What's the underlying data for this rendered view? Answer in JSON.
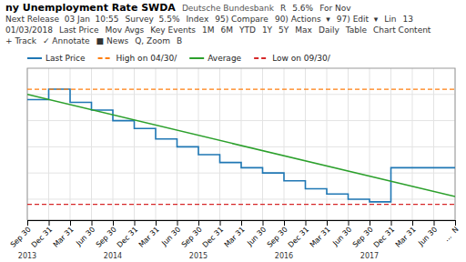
{
  "chart_data": {
    "type": "line",
    "title": "ny Unemployment Rate SWDA",
    "subtitle": "Deutsche Bundesbank",
    "series": [
      {
        "name": "Last Price",
        "type": "line",
        "x": [
          0,
          1,
          1,
          2,
          2,
          3,
          3,
          4,
          4,
          5,
          5,
          6,
          6,
          7,
          7,
          8,
          8,
          9,
          9,
          10,
          10,
          11,
          11,
          12,
          12,
          13,
          13,
          14,
          14,
          15,
          15,
          16,
          16,
          17,
          17,
          18,
          18,
          19,
          19,
          20
        ],
        "values": [
          6.9,
          6.9,
          7.1,
          7.1,
          6.85,
          6.85,
          6.7,
          6.7,
          6.5,
          6.5,
          6.35,
          6.35,
          6.15,
          6.15,
          6.0,
          6.0,
          5.85,
          5.85,
          5.7,
          5.7,
          5.6,
          5.6,
          5.5,
          5.5,
          5.35,
          5.35,
          5.2,
          5.2,
          5.1,
          5.1,
          5.0,
          5.0,
          4.95,
          4.95,
          5.6,
          5.6,
          5.6,
          5.6,
          5.6,
          5.6
        ]
      },
      {
        "name": "High on 04/30/",
        "type": "hline",
        "line_style": "dashed",
        "values": [
          7.1
        ]
      },
      {
        "name": "Average",
        "type": "line",
        "x": [
          0,
          20
        ],
        "values": [
          7.0,
          5.05
        ]
      },
      {
        "name": "Low on 09/30/",
        "type": "hline",
        "line_style": "dashed",
        "values": [
          4.9
        ]
      }
    ],
    "xlim": [
      0,
      20
    ],
    "ylim": [
      4.6,
      7.5
    ],
    "xticks": [
      {
        "value": 0,
        "label": "Sep 30"
      },
      {
        "value": 1,
        "label": "Dec 31"
      },
      {
        "value": 2,
        "label": "Mar 31"
      },
      {
        "value": 3,
        "label": "Jun 30"
      },
      {
        "value": 4,
        "label": "Sep 30"
      },
      {
        "value": 5,
        "label": "Dec 31"
      },
      {
        "value": 6,
        "label": "Mar 31"
      },
      {
        "value": 7,
        "label": "Jun 30"
      },
      {
        "value": 8,
        "label": "Sep 30"
      },
      {
        "value": 9,
        "label": "Dec 31"
      },
      {
        "value": 10,
        "label": "Mar 31"
      },
      {
        "value": 11,
        "label": "Jun 30"
      },
      {
        "value": 12,
        "label": "Sep 30"
      },
      {
        "value": 13,
        "label": "Dec 31"
      },
      {
        "value": 14,
        "label": "Mar 31"
      },
      {
        "value": 15,
        "label": "Jun 30"
      },
      {
        "value": 16,
        "label": "Sep 30"
      },
      {
        "value": 17,
        "label": "Dec 31"
      },
      {
        "value": 18,
        "label": "Mar 31"
      },
      {
        "value": 19,
        "label": "Jun 30"
      },
      {
        "value": 20,
        "label": "...  N"
      }
    ],
    "yticks": [
      5.0,
      5.5,
      6.0,
      6.5,
      7.0
    ],
    "tick_labels": "x",
    "grid": true,
    "legend": "top",
    "annotations": [
      {
        "text": "R"
      },
      {
        "text": "5.6%"
      },
      {
        "text": "For Nov"
      },
      {
        "text": "Next Release  03 Jan  10:55"
      },
      {
        "text": "Survey  5.5%"
      },
      {
        "text": "Index"
      },
      {
        "text": "95) Compare"
      },
      {
        "text": "90) Actions  ▾"
      },
      {
        "text": "97) Edit  ▾"
      },
      {
        "text": "Lin"
      },
      {
        "text": "13"
      },
      {
        "text": "01/03/2018"
      },
      {
        "text": "Last Price"
      },
      {
        "text": "Mov Avgs"
      },
      {
        "text": "Key Events"
      },
      {
        "text": "1M"
      },
      {
        "text": "6M"
      },
      {
        "text": "YTD"
      },
      {
        "text": "1Y"
      },
      {
        "text": "5Y"
      },
      {
        "text": "Max"
      },
      {
        "text": "Daily"
      },
      {
        "text": "Table"
      },
      {
        "text": "Chart Content"
      },
      {
        "text": "+ Track"
      },
      {
        "text": "✓ Annotate"
      },
      {
        "text": "■ News"
      },
      {
        "text": "Q, Zoom"
      },
      {
        "text": "B"
      },
      {
        "text": "2013",
        "x": 0
      },
      {
        "text": "2014",
        "x": 4
      },
      {
        "text": "2015",
        "x": 8
      },
      {
        "text": "2016",
        "x": 12
      },
      {
        "text": "2017",
        "x": 16
      }
    ]
  }
}
